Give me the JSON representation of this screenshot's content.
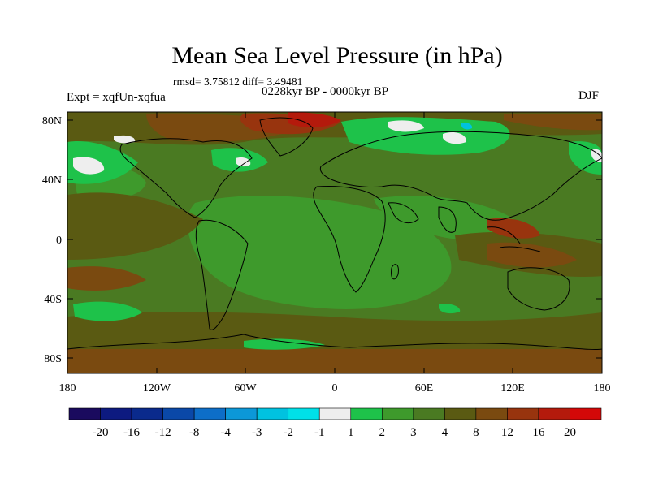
{
  "title": "Mean Sea Level Pressure (in hPa)",
  "stats_line": "rmsd= 3.75812 diff= 3.49481",
  "period": "0228kyr BP - 0000kyr BP",
  "experiment": "Expt = xqfUn-xqfua",
  "season": "DJF",
  "lat_labels": [
    "80N",
    "40N",
    "0",
    "40S",
    "80S"
  ],
  "lon_labels": [
    "180",
    "120W",
    "60W",
    "0",
    "60E",
    "120E",
    "180"
  ],
  "colorbar": {
    "labels": [
      "-20",
      "-16",
      "-12",
      "-8",
      "-4",
      "-3",
      "-2",
      "-1",
      "1",
      "2",
      "3",
      "4",
      "8",
      "12",
      "16",
      "20"
    ],
    "colors": [
      "#1a0a5e",
      "#0d1a80",
      "#0a2a8c",
      "#0a48a8",
      "#0d6ec8",
      "#0c98d8",
      "#00c2e0",
      "#00e0e8",
      "#eeeeee",
      "#1ec24a",
      "#3e9a2c",
      "#4a7a22",
      "#5a5a12",
      "#7a4a10",
      "#98340e",
      "#b41a0c",
      "#d40808"
    ]
  }
}
